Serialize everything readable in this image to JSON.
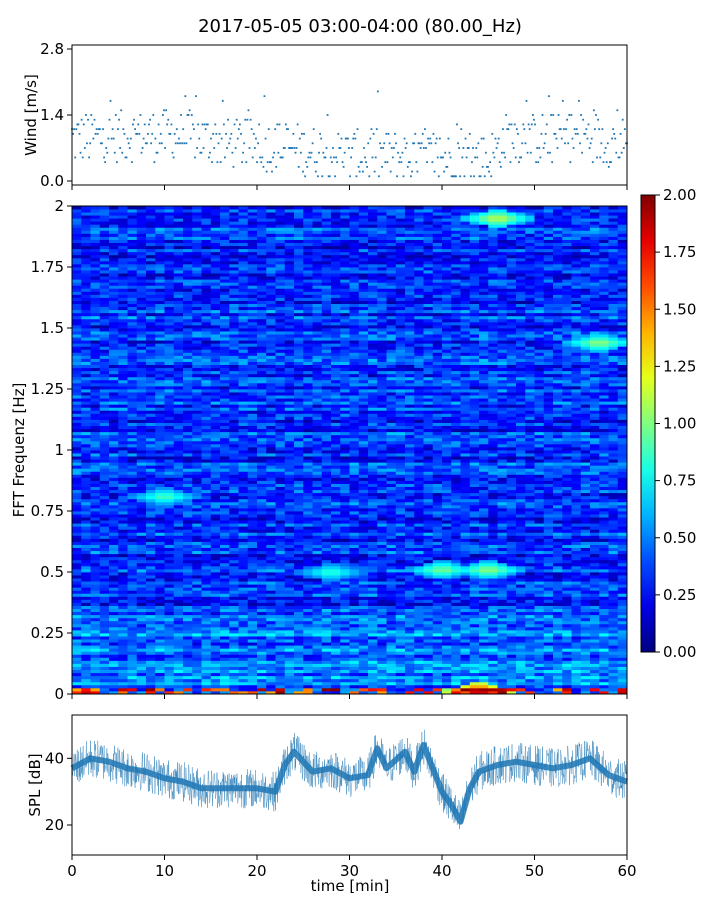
{
  "title": "2017-05-05 03:00-04:00 (80.00_Hz)",
  "chart_data": [
    {
      "id": "wind",
      "type": "scatter",
      "ylabel": "Wind [m/s]",
      "xlim": [
        0,
        60
      ],
      "ylim": [
        0,
        2.8
      ],
      "ytick_labels": [
        "0.0",
        "1.4",
        "2.8"
      ],
      "ytick_values": [
        0,
        1.4,
        2.8
      ],
      "color": "#1f77b4",
      "baseline_segments": [
        {
          "x": [
            0,
            10,
            20,
            23,
            30,
            40,
            45,
            47,
            50,
            55,
            60
          ],
          "y": [
            0.9,
            1.0,
            0.75,
            0.7,
            0.55,
            0.5,
            0.45,
            0.9,
            0.9,
            0.95,
            0.8
          ]
        }
      ]
    },
    {
      "id": "spectrogram",
      "type": "heatmap",
      "ylabel": "FFT Frequenz [Hz]",
      "xlim": [
        0,
        60
      ],
      "ylim": [
        0,
        2
      ],
      "ytick_labels": [
        "0",
        "0.25",
        "0.5",
        "0.75",
        "1",
        "1.25",
        "1.5",
        "1.75",
        "2"
      ],
      "ytick_values": [
        0,
        0.25,
        0.5,
        0.75,
        1,
        1.25,
        1.5,
        1.75,
        2
      ],
      "colorbar": {
        "range": [
          0,
          2
        ],
        "tick_labels": [
          "0.00",
          "0.25",
          "0.50",
          "0.75",
          "1.00",
          "1.25",
          "1.50",
          "1.75",
          "2.00"
        ],
        "tick_values": [
          0,
          0.25,
          0.5,
          0.75,
          1,
          1.25,
          1.5,
          1.75,
          2
        ],
        "colormap": "jet"
      },
      "hotspots": [
        {
          "t": 46,
          "f": 1.95,
          "v": 1.2
        },
        {
          "t": 57,
          "f": 1.44,
          "v": 1.1
        },
        {
          "t": 10,
          "f": 0.81,
          "v": 0.95
        },
        {
          "t": 40,
          "f": 0.51,
          "v": 1.05
        },
        {
          "t": 45,
          "f": 0.51,
          "v": 1.1
        },
        {
          "t": 28,
          "f": 0.5,
          "v": 0.9
        },
        {
          "t": 44,
          "f": 0.01,
          "v": 2.0
        }
      ]
    },
    {
      "id": "spl",
      "type": "line",
      "ylabel": "SPL [dB]",
      "xlabel": "time [min]",
      "xlim": [
        0,
        60
      ],
      "ylim": [
        11,
        53
      ],
      "ytick_labels": [
        "20",
        "40"
      ],
      "ytick_values": [
        20,
        40
      ],
      "xtick_labels": [
        "0",
        "10",
        "20",
        "30",
        "40",
        "50",
        "60"
      ],
      "xtick_values": [
        0,
        10,
        20,
        30,
        40,
        50,
        60
      ],
      "color": "#1f77b4",
      "x": [
        0,
        2,
        4,
        6,
        8,
        10,
        12,
        14,
        16,
        18,
        20,
        22,
        23,
        24,
        26,
        28,
        30,
        32,
        33,
        34,
        36,
        37,
        38,
        40,
        41,
        42,
        43,
        44,
        46,
        48,
        50,
        52,
        54,
        56,
        58,
        60
      ],
      "y": [
        37,
        40,
        39,
        37,
        36,
        34,
        33,
        31,
        31,
        31,
        31,
        30,
        38,
        42,
        36,
        37,
        34,
        35,
        43,
        37,
        42,
        36,
        44,
        30,
        26,
        21,
        31,
        36,
        38,
        39,
        38,
        37,
        38,
        40,
        35,
        33
      ]
    }
  ]
}
